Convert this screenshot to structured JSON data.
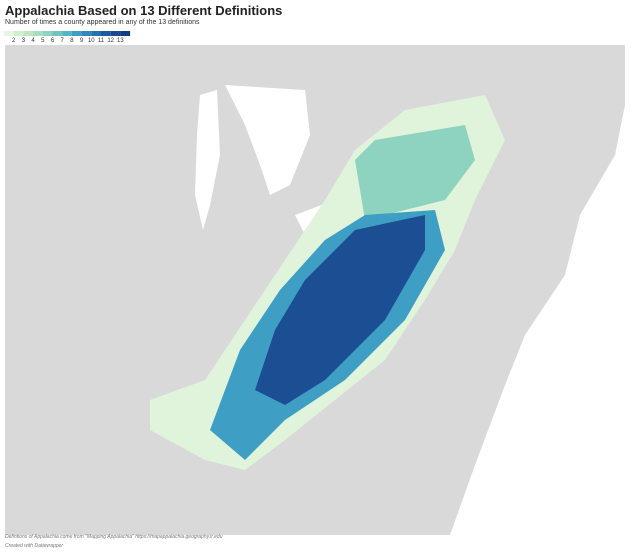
{
  "header": {
    "title": "Appalachia Based on 13 Different Definitions",
    "subtitle": "Number of times a county appeared in any of the 13 definitions"
  },
  "legend": {
    "labels": [
      "2",
      "3",
      "4",
      "5",
      "6",
      "7",
      "8",
      "9",
      "10",
      "11",
      "12",
      "13"
    ],
    "colors": [
      "#e8f6e3",
      "#d3eece",
      "#bfe6c4",
      "#a8ddc0",
      "#8ed2c0",
      "#72c4c2",
      "#57b3c4",
      "#3f9ec4",
      "#2f87be",
      "#2470b2",
      "#1c5aa2",
      "#174890",
      "#123a7e"
    ]
  },
  "footer": {
    "source": "Defintions of Appalachia come from \"Mapping Appalachia\" https://mapappalachia.geography.ir.edu",
    "credit": "Created with Datawrapper"
  }
}
